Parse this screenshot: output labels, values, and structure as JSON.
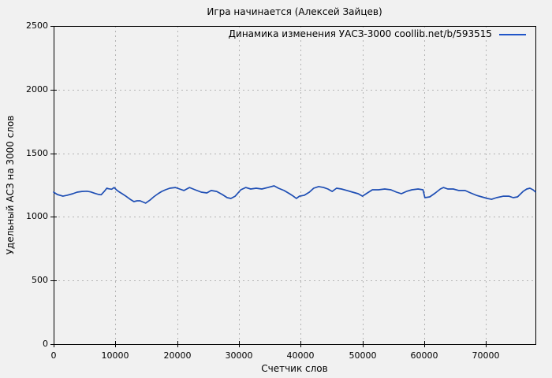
{
  "page": {
    "background": "#f1f1f1"
  },
  "chart": {
    "title": "Игра начинается (Алексей Зайцев)",
    "x_axis_label": "Счетчик слов",
    "y_axis_label": "Удельный АСЗ на 3000 слов",
    "legend_label": "Динамика изменения УАСЗ-3000 coollib.net/b/593515"
  },
  "colors": {
    "background": "#f1f1f1",
    "line": "#1e4eb4",
    "legend_line": "#2055c8",
    "grid": "#b4b4b4",
    "axis": "#000000",
    "text": "#000000"
  },
  "chart_data": {
    "type": "line",
    "title": "Игра начинается (Алексей Зайцев)",
    "xlabel": "Счетчик слов",
    "ylabel": "Удельный АСЗ на 3000 слов",
    "legend_entries": [
      "Динамика изменения УАСЗ-3000 coollib.net/b/593515"
    ],
    "legend_position": "top-right-inside",
    "grid": true,
    "xlim": [
      0,
      78000
    ],
    "ylim": [
      0,
      2500
    ],
    "xticks": [
      0,
      10000,
      20000,
      30000,
      40000,
      50000,
      60000,
      70000
    ],
    "yticks": [
      0,
      500,
      1000,
      1500,
      2000,
      2500
    ],
    "series": [
      {
        "name": "Динамика изменения УАСЗ-3000 coollib.net/b/593515",
        "color": "#1e4eb4",
        "points": [
          [
            0,
            1194
          ],
          [
            600,
            1176
          ],
          [
            1500,
            1163
          ],
          [
            2200,
            1170
          ],
          [
            3100,
            1182
          ],
          [
            3800,
            1194
          ],
          [
            4600,
            1200
          ],
          [
            5400,
            1202
          ],
          [
            6000,
            1196
          ],
          [
            6600,
            1186
          ],
          [
            7300,
            1176
          ],
          [
            7700,
            1174
          ],
          [
            8200,
            1200
          ],
          [
            8600,
            1225
          ],
          [
            8900,
            1221
          ],
          [
            9400,
            1217
          ],
          [
            9800,
            1231
          ],
          [
            10200,
            1211
          ],
          [
            10500,
            1200
          ],
          [
            11100,
            1182
          ],
          [
            11700,
            1163
          ],
          [
            12400,
            1138
          ],
          [
            13000,
            1120
          ],
          [
            13500,
            1126
          ],
          [
            14000,
            1126
          ],
          [
            14600,
            1114
          ],
          [
            14900,
            1108
          ],
          [
            15600,
            1132
          ],
          [
            16200,
            1157
          ],
          [
            16900,
            1182
          ],
          [
            17500,
            1200
          ],
          [
            18100,
            1213
          ],
          [
            18800,
            1225
          ],
          [
            19700,
            1231
          ],
          [
            20400,
            1219
          ],
          [
            21100,
            1207
          ],
          [
            22000,
            1231
          ],
          [
            22900,
            1213
          ],
          [
            23900,
            1194
          ],
          [
            24800,
            1188
          ],
          [
            25500,
            1207
          ],
          [
            26400,
            1200
          ],
          [
            27300,
            1176
          ],
          [
            28100,
            1151
          ],
          [
            28700,
            1145
          ],
          [
            29400,
            1163
          ],
          [
            30300,
            1213
          ],
          [
            31100,
            1231
          ],
          [
            31900,
            1219
          ],
          [
            32800,
            1225
          ],
          [
            33700,
            1219
          ],
          [
            34700,
            1231
          ],
          [
            35700,
            1244
          ],
          [
            36400,
            1225
          ],
          [
            37300,
            1207
          ],
          [
            38200,
            1182
          ],
          [
            38800,
            1163
          ],
          [
            39300,
            1145
          ],
          [
            39800,
            1163
          ],
          [
            40600,
            1170
          ],
          [
            41400,
            1194
          ],
          [
            42100,
            1225
          ],
          [
            42900,
            1238
          ],
          [
            43700,
            1231
          ],
          [
            44400,
            1219
          ],
          [
            45100,
            1200
          ],
          [
            45800,
            1225
          ],
          [
            46600,
            1219
          ],
          [
            47500,
            1207
          ],
          [
            48400,
            1194
          ],
          [
            49300,
            1182
          ],
          [
            50000,
            1163
          ],
          [
            50800,
            1188
          ],
          [
            51600,
            1213
          ],
          [
            52600,
            1213
          ],
          [
            53600,
            1219
          ],
          [
            54600,
            1213
          ],
          [
            55500,
            1194
          ],
          [
            56300,
            1182
          ],
          [
            57100,
            1200
          ],
          [
            58000,
            1213
          ],
          [
            59000,
            1219
          ],
          [
            59800,
            1213
          ],
          [
            60100,
            1151
          ],
          [
            60900,
            1157
          ],
          [
            61800,
            1188
          ],
          [
            62600,
            1219
          ],
          [
            63100,
            1231
          ],
          [
            63800,
            1219
          ],
          [
            64700,
            1219
          ],
          [
            65600,
            1207
          ],
          [
            66600,
            1207
          ],
          [
            67500,
            1188
          ],
          [
            68400,
            1170
          ],
          [
            69300,
            1157
          ],
          [
            70200,
            1145
          ],
          [
            70900,
            1138
          ],
          [
            71700,
            1151
          ],
          [
            72800,
            1163
          ],
          [
            73700,
            1163
          ],
          [
            74400,
            1151
          ],
          [
            75100,
            1157
          ],
          [
            76000,
            1200
          ],
          [
            76600,
            1219
          ],
          [
            77100,
            1225
          ],
          [
            77600,
            1213
          ],
          [
            78000,
            1197
          ]
        ]
      }
    ]
  }
}
